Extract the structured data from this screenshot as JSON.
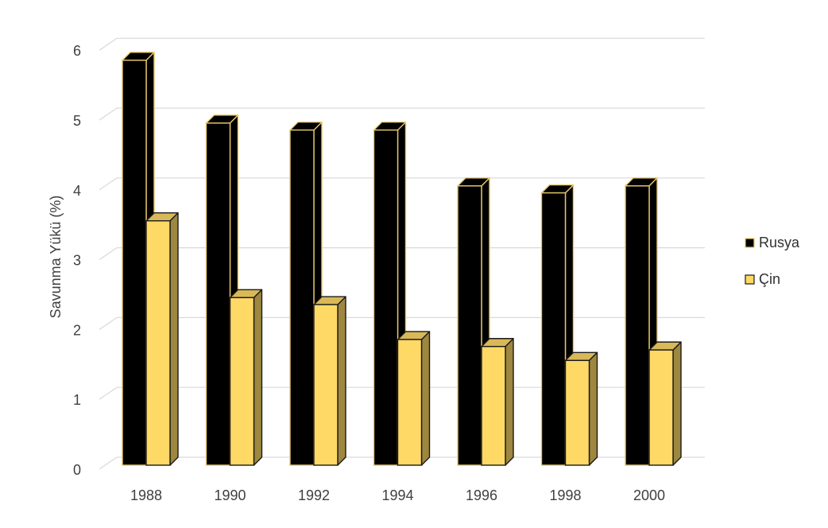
{
  "chart_data": {
    "type": "bar",
    "style": "3d-clustered-column",
    "categories": [
      "1988",
      "1990",
      "1992",
      "1994",
      "1996",
      "1998",
      "2000"
    ],
    "series": [
      {
        "name": "Rusya",
        "values": [
          5.8,
          4.9,
          4.8,
          4.8,
          4.0,
          3.9,
          4.0
        ],
        "color": "#000000"
      },
      {
        "name": "Çin",
        "values": [
          3.5,
          2.4,
          2.3,
          1.8,
          1.7,
          1.5,
          1.65
        ],
        "color": "#FFD966"
      }
    ],
    "ylabel": "Savunma Yükü (%)",
    "yticks": [
      "0",
      "1",
      "2",
      "3",
      "4",
      "5",
      "6"
    ],
    "ylim": [
      0,
      6
    ],
    "grid": true,
    "legend_position": "right"
  }
}
